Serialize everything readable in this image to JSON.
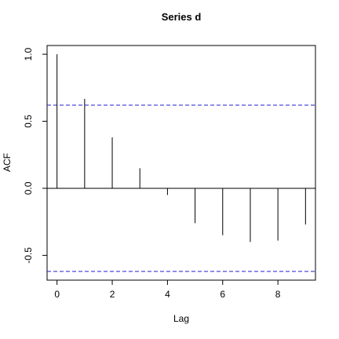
{
  "chart_data": {
    "type": "stem",
    "title": "Series  d",
    "x_label": "Lag",
    "y_label": "ACF",
    "x": [
      0,
      1,
      2,
      3,
      4,
      5,
      6,
      7,
      8,
      9
    ],
    "values": [
      1.0,
      0.667,
      0.38,
      0.15,
      -0.05,
      -0.26,
      -0.35,
      -0.4,
      -0.39,
      -0.27
    ],
    "color": "#000000",
    "conf_bounds": [
      0.62,
      -0.62
    ],
    "conf_color": "#1f1fcf",
    "xlim": [
      -0.36,
      9.36
    ],
    "xticks": [
      0,
      2,
      4,
      6,
      8
    ],
    "ylim": [
      -0.685,
      1.065
    ],
    "yticks": [
      {
        "value": -0.5,
        "label": "-0.5"
      },
      {
        "value": 0,
        "label": "0.0"
      },
      {
        "value": 0.5,
        "label": "0.5"
      },
      {
        "value": 1,
        "label": "1.0"
      }
    ]
  }
}
